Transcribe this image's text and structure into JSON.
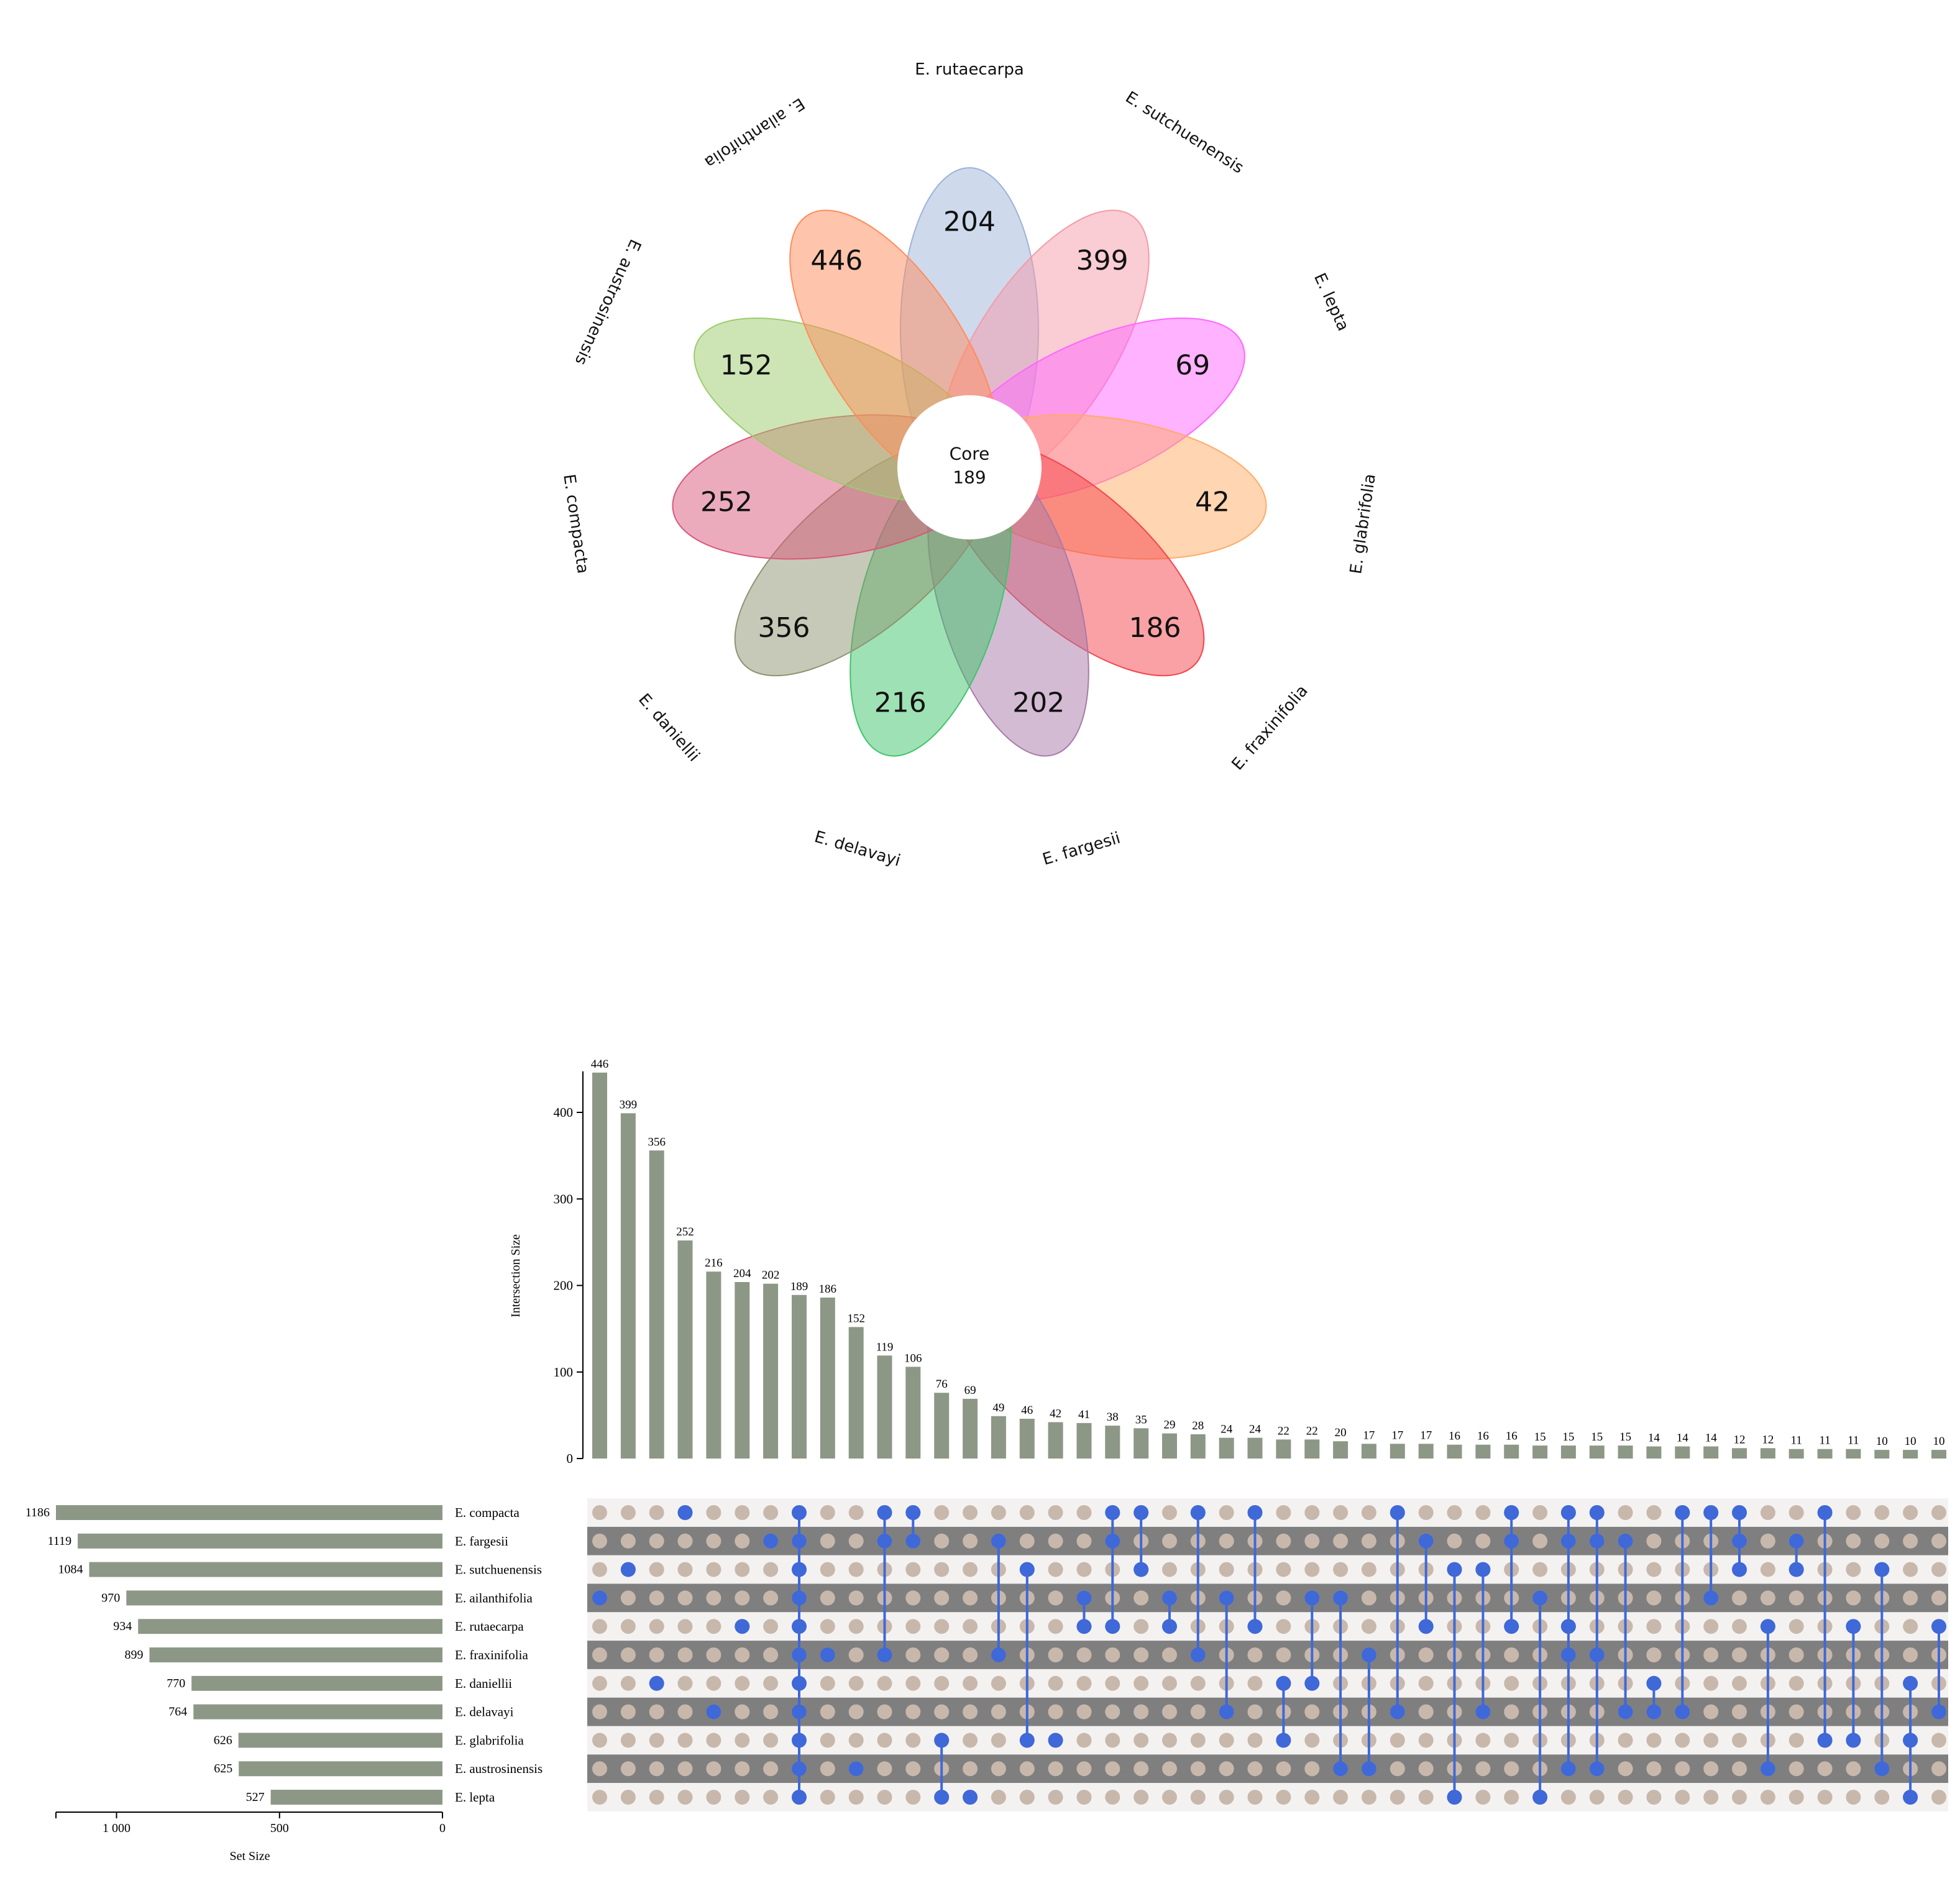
{
  "chart_data": [
    {
      "type": "venn",
      "core": {
        "label": "Core",
        "value": 189
      },
      "petals": [
        {
          "name": "E. rutaecarpa",
          "value": 204,
          "color": "#9db3d9"
        },
        {
          "name": "E. sutchuenensis",
          "value": 399,
          "color": "#f59aa8"
        },
        {
          "name": "E. lepta",
          "value": 69,
          "color": "#ff66ff"
        },
        {
          "name": "E. glabrifolia",
          "value": 42,
          "color": "#ffab66"
        },
        {
          "name": "E. fraxinifolia",
          "value": 186,
          "color": "#f5444c"
        },
        {
          "name": "E. fargesii",
          "value": 202,
          "color": "#a77aa8"
        },
        {
          "name": "E. delavayi",
          "value": 216,
          "color": "#3dc46a"
        },
        {
          "name": "E. daniellii",
          "value": 356,
          "color": "#8e9470"
        },
        {
          "name": "E. compacta",
          "value": 252,
          "color": "#d9577a"
        },
        {
          "name": "E. austrosinensis",
          "value": 152,
          "color": "#9ccc6c"
        },
        {
          "name": "E. ailanthifolia",
          "value": 446,
          "color": "#ff8c5a"
        }
      ]
    },
    {
      "type": "upset",
      "ylabel": "Intersection Size",
      "xlabel": "Set Size",
      "ylim": [
        0,
        460
      ],
      "yticks": [
        0,
        100,
        200,
        300,
        400
      ],
      "set_size_ticks": [
        {
          "value": 1000,
          "label": "1 000"
        },
        {
          "value": 500,
          "label": "500"
        },
        {
          "value": 0,
          "label": "0"
        }
      ],
      "sets": [
        {
          "name": "E. compacta",
          "size": 1186
        },
        {
          "name": "E. fargesii",
          "size": 1119
        },
        {
          "name": "E. sutchuenensis",
          "size": 1084
        },
        {
          "name": "E. ailanthifolia",
          "size": 970
        },
        {
          "name": "E. rutaecarpa",
          "size": 934
        },
        {
          "name": "E. fraxinifolia",
          "size": 899
        },
        {
          "name": "E. daniellii",
          "size": 770
        },
        {
          "name": "E. delavayi",
          "size": 764
        },
        {
          "name": "E. glabrifolia",
          "size": 626
        },
        {
          "name": "E. austrosinensis",
          "size": 625
        },
        {
          "name": "E. lepta",
          "size": 527
        }
      ],
      "intersections": [
        {
          "value": 446,
          "sets": [
            3
          ]
        },
        {
          "value": 399,
          "sets": [
            2
          ]
        },
        {
          "value": 356,
          "sets": [
            6
          ]
        },
        {
          "value": 252,
          "sets": [
            0
          ]
        },
        {
          "value": 216,
          "sets": [
            7
          ]
        },
        {
          "value": 204,
          "sets": [
            4
          ]
        },
        {
          "value": 202,
          "sets": [
            1
          ]
        },
        {
          "value": 189,
          "sets": [
            0,
            1,
            2,
            3,
            4,
            5,
            6,
            7,
            8,
            9,
            10
          ]
        },
        {
          "value": 186,
          "sets": [
            5
          ]
        },
        {
          "value": 152,
          "sets": [
            9
          ]
        },
        {
          "value": 119,
          "sets": [
            0,
            1,
            5
          ]
        },
        {
          "value": 106,
          "sets": [
            0,
            1
          ]
        },
        {
          "value": 76,
          "sets": [
            8,
            10
          ]
        },
        {
          "value": 69,
          "sets": [
            10
          ]
        },
        {
          "value": 49,
          "sets": [
            1,
            5
          ]
        },
        {
          "value": 46,
          "sets": [
            2,
            8
          ]
        },
        {
          "value": 42,
          "sets": [
            8
          ]
        },
        {
          "value": 41,
          "sets": [
            3,
            4
          ]
        },
        {
          "value": 38,
          "sets": [
            0,
            1,
            4
          ]
        },
        {
          "value": 35,
          "sets": [
            0,
            2
          ]
        },
        {
          "value": 29,
          "sets": [
            3,
            4
          ]
        },
        {
          "value": 28,
          "sets": [
            0,
            5
          ]
        },
        {
          "value": 24,
          "sets": [
            3,
            7
          ]
        },
        {
          "value": 24,
          "sets": [
            0,
            4
          ]
        },
        {
          "value": 22,
          "sets": [
            6,
            8
          ]
        },
        {
          "value": 22,
          "sets": [
            3,
            6
          ]
        },
        {
          "value": 20,
          "sets": [
            3,
            9
          ]
        },
        {
          "value": 17,
          "sets": [
            5,
            9
          ]
        },
        {
          "value": 17,
          "sets": [
            0,
            7
          ]
        },
        {
          "value": 17,
          "sets": [
            1,
            4
          ]
        },
        {
          "value": 16,
          "sets": [
            2,
            10
          ]
        },
        {
          "value": 16,
          "sets": [
            2,
            7
          ]
        },
        {
          "value": 16,
          "sets": [
            0,
            1,
            4
          ]
        },
        {
          "value": 15,
          "sets": [
            3,
            10
          ]
        },
        {
          "value": 15,
          "sets": [
            0,
            1,
            4,
            5,
            9
          ]
        },
        {
          "value": 15,
          "sets": [
            0,
            1,
            5,
            9
          ]
        },
        {
          "value": 15,
          "sets": [
            1,
            7
          ]
        },
        {
          "value": 14,
          "sets": [
            6,
            7
          ]
        },
        {
          "value": 14,
          "sets": [
            0,
            7
          ]
        },
        {
          "value": 14,
          "sets": [
            0,
            3
          ]
        },
        {
          "value": 12,
          "sets": [
            0,
            1,
            2
          ]
        },
        {
          "value": 12,
          "sets": [
            4,
            9
          ]
        },
        {
          "value": 11,
          "sets": [
            1,
            2
          ]
        },
        {
          "value": 11,
          "sets": [
            0,
            8
          ]
        },
        {
          "value": 11,
          "sets": [
            4,
            8
          ]
        },
        {
          "value": 10,
          "sets": [
            2,
            9
          ]
        },
        {
          "value": 10,
          "sets": [
            6,
            8,
            10
          ]
        },
        {
          "value": 10,
          "sets": [
            4,
            7
          ]
        }
      ]
    }
  ]
}
